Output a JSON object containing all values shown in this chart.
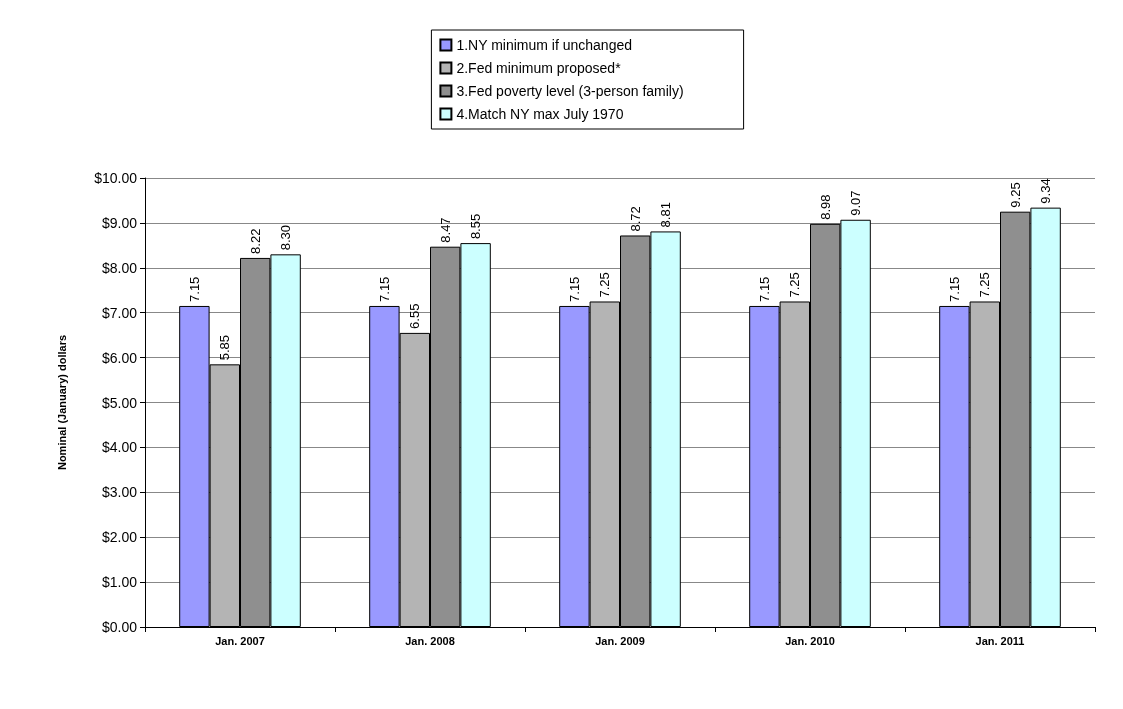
{
  "chart_data": {
    "type": "bar",
    "ylabel": "Nominal (January) dollars",
    "categories": [
      "Jan. 2007",
      "Jan. 2008",
      "Jan. 2009",
      "Jan. 2010",
      "Jan. 2011"
    ],
    "series": [
      {
        "name": "1.NY minimum if unchanged",
        "color": "#9999ff",
        "values": [
          7.15,
          7.15,
          7.15,
          7.15,
          7.15
        ],
        "value_labels": [
          "7.15",
          "7.15",
          "7.15",
          "7.15",
          "7.15"
        ]
      },
      {
        "name": "2.Fed minimum proposed*",
        "color": "#b4b4b4",
        "values": [
          5.85,
          6.55,
          7.25,
          7.25,
          7.25
        ],
        "value_labels": [
          "5.85",
          "6.55",
          "7.25",
          "7.25",
          "7.25"
        ]
      },
      {
        "name": "3.Fed poverty level (3-person family)",
        "color": "#8f8f8f",
        "values": [
          8.22,
          8.47,
          8.72,
          8.98,
          9.25
        ],
        "value_labels": [
          "8.22",
          "8.47",
          "8.72",
          "8.98",
          "9.25"
        ]
      },
      {
        "name": "4.Match NY max July 1970",
        "color": "#ccffff",
        "values": [
          8.3,
          8.55,
          8.81,
          9.07,
          9.34
        ],
        "value_labels": [
          "8.30",
          "8.55",
          "8.81",
          "9.07",
          "9.34"
        ]
      }
    ],
    "ylim": [
      0,
      10
    ],
    "yticks": [
      {
        "value": 0,
        "label": "$0.00"
      },
      {
        "value": 1,
        "label": "$1.00"
      },
      {
        "value": 2,
        "label": "$2.00"
      },
      {
        "value": 3,
        "label": "$3.00"
      },
      {
        "value": 4,
        "label": "$4.00"
      },
      {
        "value": 5,
        "label": "$5.00"
      },
      {
        "value": 6,
        "label": "$6.00"
      },
      {
        "value": 7,
        "label": "$7.00"
      },
      {
        "value": 8,
        "label": "$8.00"
      },
      {
        "value": 9,
        "label": "$9.00"
      },
      {
        "value": 10,
        "label": "$10.00"
      }
    ],
    "grid": "y",
    "legend": "top"
  }
}
